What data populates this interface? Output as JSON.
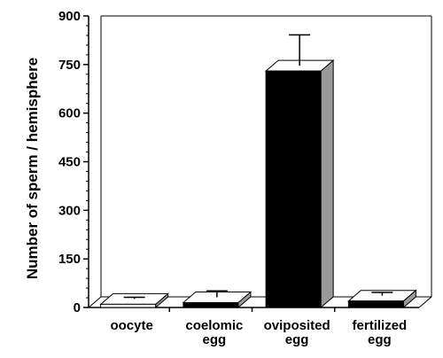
{
  "chart_data": {
    "type": "bar",
    "title": "",
    "xlabel": "",
    "ylabel": "Number of sperm / hemisphere",
    "ylim": [
      0,
      900
    ],
    "yticks": [
      "0",
      "150",
      "300",
      "450",
      "600",
      "750",
      "900"
    ],
    "categories": [
      [
        "oocyte"
      ],
      [
        "coelomic",
        "egg"
      ],
      [
        "oviposited",
        "egg"
      ],
      [
        "fertilized",
        "egg"
      ]
    ],
    "values": [
      10,
      15,
      730,
      20
    ],
    "error": [
      5,
      20,
      95,
      10
    ],
    "bar_style": "3d",
    "colors": {
      "oocyte": "#ffffff",
      "coelomic_egg": "#000000",
      "oviposited_egg": "#000000",
      "fertilized_egg": "#000000",
      "side_shading": "#9a9a9a"
    },
    "grid": false,
    "legend": "none"
  }
}
